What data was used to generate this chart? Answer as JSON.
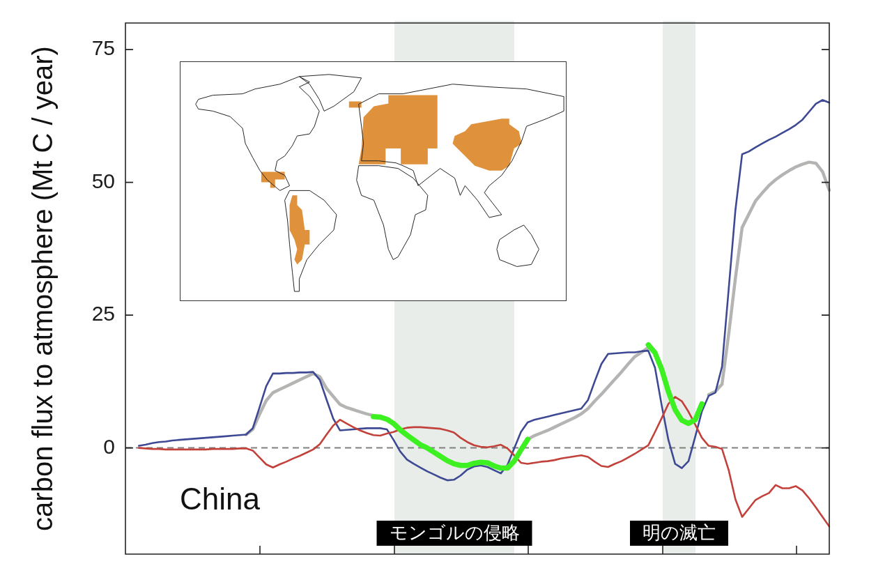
{
  "chart_data": {
    "type": "line",
    "ylabel": "carbon flux to atmosphere (Mt C / year)",
    "categories": [
      null,
      null,
      null,
      null,
      null,
      null,
      null,
      null,
      null,
      null,
      null,
      null,
      null,
      null,
      null,
      null,
      null,
      null,
      null,
      null,
      null,
      null,
      null,
      null,
      null,
      null,
      null,
      null,
      null,
      null,
      null,
      null,
      null,
      null,
      null,
      null,
      null,
      null,
      null,
      null,
      null,
      null,
      null,
      null,
      null,
      null,
      null,
      null,
      null,
      null,
      null,
      null,
      null,
      null,
      null,
      null,
      null,
      null,
      null,
      null,
      null,
      null,
      null,
      null,
      null,
      null,
      null,
      null,
      null,
      null,
      null,
      null,
      null,
      null,
      null,
      null,
      null,
      null,
      null,
      null,
      null,
      null,
      null,
      null,
      null,
      null,
      null,
      null,
      null,
      null,
      null,
      null,
      null,
      null,
      null,
      null,
      null,
      null,
      null,
      null,
      null,
      null,
      null,
      null,
      null,
      null
    ],
    "series": [
      {
        "color": "#b4b4b2",
        "values": [
          null,
          null,
          null,
          null,
          null,
          null,
          null,
          null,
          null,
          null,
          null,
          null,
          null,
          null,
          null,
          null,
          null,
          null,
          2.5,
          3.5,
          6.3,
          8.9,
          10.4,
          11.0,
          11.6,
          12.2,
          12.8,
          13.4,
          14.0,
          13.4,
          11.2,
          9.7,
          8.2,
          7.6,
          7.2,
          6.8,
          6.4,
          6.1,
          null,
          null,
          null,
          null,
          null,
          null,
          null,
          null,
          null,
          null,
          null,
          null,
          null,
          null,
          null,
          null,
          null,
          null,
          null,
          null,
          null,
          null,
          1.6,
          2.3,
          2.8,
          3.3,
          3.9,
          4.5,
          5.1,
          5.7,
          6.4,
          7.4,
          8.8,
          10.1,
          11.5,
          12.9,
          14.3,
          15.8,
          17.2,
          18.0,
          18.9,
          null,
          null,
          null,
          null,
          null,
          null,
          null,
          null,
          10.0,
          10.6,
          12.0,
          21.5,
          32.0,
          41.5,
          44.0,
          46.5,
          48.0,
          49.4,
          50.5,
          51.4,
          52.2,
          52.9,
          53.4,
          53.8,
          53.6,
          52.0,
          48.5
        ]
      },
      {
        "color": "#3e4994",
        "values": [
          null,
          null,
          0.4,
          0.6,
          0.9,
          1.1,
          1.2,
          1.4,
          1.5,
          1.6,
          1.7,
          1.8,
          1.9,
          2.0,
          2.1,
          2.2,
          2.3,
          2.4,
          2.5,
          3.7,
          7.6,
          11.6,
          14.0,
          14.0,
          14.1,
          14.1,
          14.2,
          14.2,
          14.3,
          12.8,
          9.1,
          5.5,
          3.3,
          3.4,
          3.5,
          3.6,
          3.7,
          3.7,
          3.7,
          3.5,
          1.5,
          -0.7,
          -2.2,
          -3.0,
          -3.7,
          -4.4,
          -5.0,
          -5.6,
          -6.1,
          -6.0,
          -5.2,
          -4.1,
          -3.5,
          -3.3,
          -3.6,
          -4.2,
          -4.8,
          -3.2,
          -0.1,
          3.0,
          4.8,
          5.3,
          5.6,
          5.9,
          6.2,
          6.5,
          6.8,
          7.1,
          7.4,
          9.0,
          12.5,
          15.8,
          17.7,
          17.8,
          17.9,
          18.0,
          18.0,
          18.2,
          18.3,
          15.1,
          8.0,
          1.5,
          -3.0,
          -3.8,
          -2.5,
          2.1,
          6.9,
          9.8,
          10.4,
          15.3,
          30.0,
          44.8,
          55.3,
          55.8,
          56.6,
          57.3,
          58.0,
          58.6,
          59.3,
          60.0,
          60.8,
          61.8,
          63.3,
          64.8,
          65.5,
          65.0
        ]
      },
      {
        "color": "#c2413a",
        "values": [
          null,
          null,
          0.0,
          -0.1,
          -0.2,
          -0.2,
          -0.3,
          -0.3,
          -0.3,
          -0.3,
          -0.3,
          -0.3,
          -0.3,
          -0.2,
          -0.2,
          -0.2,
          -0.2,
          -0.1,
          -0.1,
          -0.5,
          -1.8,
          -3.1,
          -3.7,
          -3.1,
          -2.6,
          -2.0,
          -1.5,
          -0.9,
          -0.3,
          0.7,
          2.5,
          4.2,
          5.3,
          4.6,
          3.9,
          3.3,
          2.8,
          2.4,
          2.3,
          2.7,
          3.0,
          3.5,
          3.8,
          3.9,
          3.9,
          3.8,
          3.7,
          3.6,
          3.3,
          2.9,
          1.9,
          1.1,
          0.5,
          0.2,
          0.1,
          0.3,
          0.6,
          -0.1,
          -1.4,
          -2.8,
          -3.0,
          -2.8,
          -2.6,
          -2.5,
          -2.3,
          -2.0,
          -1.8,
          -1.6,
          -1.4,
          -1.7,
          -2.6,
          -3.4,
          -3.6,
          -3.0,
          -2.5,
          -1.8,
          -1.1,
          -0.3,
          0.5,
          3.0,
          5.6,
          8.3,
          9.6,
          8.8,
          6.8,
          4.4,
          1.9,
          0.4,
          0.2,
          -0.2,
          -4.2,
          -9.7,
          -13.0,
          -11.4,
          -9.8,
          -9.1,
          -8.5,
          -7.0,
          -7.6,
          -7.6,
          -7.2,
          -8.0,
          -9.5,
          -11.2,
          -13.0,
          -14.8
        ]
      },
      {
        "color": "#3df022",
        "values": [
          null,
          null,
          null,
          null,
          null,
          null,
          null,
          null,
          null,
          null,
          null,
          null,
          null,
          null,
          null,
          null,
          null,
          null,
          null,
          null,
          null,
          null,
          null,
          null,
          null,
          null,
          null,
          null,
          null,
          null,
          null,
          null,
          null,
          null,
          null,
          null,
          null,
          5.9,
          5.8,
          5.4,
          4.6,
          3.4,
          2.4,
          1.5,
          0.6,
          0.0,
          -0.8,
          -1.6,
          -2.4,
          -3.0,
          -3.3,
          -3.3,
          -2.9,
          -2.7,
          -2.8,
          -3.4,
          -3.8,
          -3.8,
          -2.5,
          -0.4,
          1.6,
          null,
          null,
          null,
          null,
          null,
          null,
          null,
          null,
          null,
          null,
          null,
          null,
          null,
          null,
          null,
          null,
          null,
          19.4,
          17.9,
          14.8,
          10.6,
          7.2,
          5.2,
          4.6,
          5.3,
          8.3,
          null,
          null,
          null,
          null,
          null,
          null,
          null,
          null,
          null,
          null,
          null,
          null,
          null,
          null,
          null,
          null,
          null,
          null,
          null
        ]
      }
    ],
    "ylim": [
      -20,
      80
    ],
    "yticks": [
      0,
      25,
      50,
      75
    ],
    "tick_labels": "y",
    "ref_lines": [
      {
        "axis": "y",
        "value": 0,
        "color": "#808080",
        "line_style": "dashed"
      }
    ],
    "annotations": [
      "China",
      "モンゴルの侵略",
      "明の滅亡"
    ]
  }
}
